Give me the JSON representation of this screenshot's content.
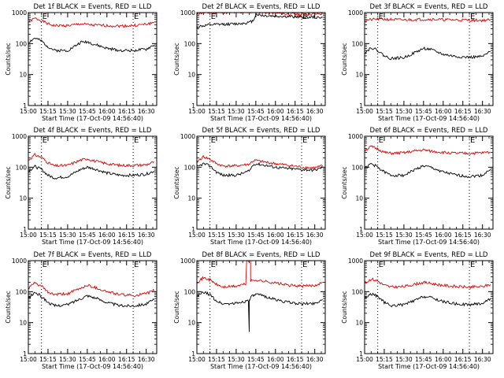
{
  "chart_data": [
    {
      "type": "line",
      "title": "Det 1f BLACK = Events, RED = LLD",
      "xlabel": "Start Time (17-Oct-09 14:56:40)",
      "ylabel": "Counts/sec",
      "xlim": [
        "15:00",
        "16:38"
      ],
      "ylim": [
        1,
        1000
      ],
      "yscale": "log",
      "x_ticks": [
        "15:00",
        "15:15",
        "15:30",
        "15:45",
        "16:00",
        "16:15",
        "16:30"
      ],
      "y_ticks": [
        "1",
        "10",
        "100",
        "1000"
      ],
      "markers": [
        {
          "time": "15:10",
          "label": "E"
        },
        {
          "time": "16:20",
          "label": "E"
        }
      ],
      "series": [
        {
          "color": "#e00000",
          "x": [
            "15:00",
            "15:05",
            "15:10",
            "15:15",
            "15:20",
            "15:30",
            "15:35",
            "15:40",
            "15:45",
            "15:50",
            "16:00",
            "16:10",
            "16:20",
            "16:30",
            "16:36"
          ],
          "values": [
            500,
            650,
            560,
            430,
            380,
            380,
            400,
            430,
            410,
            390,
            380,
            370,
            380,
            420,
            480
          ]
        },
        {
          "color": "#000000",
          "x": [
            "15:00",
            "15:05",
            "15:10",
            "15:15",
            "15:20",
            "15:30",
            "15:35",
            "15:40",
            "15:45",
            "15:50",
            "16:00",
            "16:10",
            "16:20",
            "16:30",
            "16:36"
          ],
          "values": [
            110,
            150,
            120,
            80,
            60,
            60,
            80,
            110,
            115,
            95,
            70,
            60,
            60,
            65,
            90
          ]
        }
      ]
    },
    {
      "type": "line",
      "title": "Det 2f BLACK = Events, RED = LLD",
      "xlabel": "Start Time (17-Oct-09 14:56:40)",
      "ylabel": "Counts/sec",
      "xlim": [
        "15:00",
        "16:38"
      ],
      "ylim": [
        1,
        1000
      ],
      "yscale": "log",
      "x_ticks": [
        "15:00",
        "15:15",
        "15:30",
        "15:45",
        "16:00",
        "16:15",
        "16:30"
      ],
      "y_ticks": [
        "1",
        "10",
        "100",
        "1000"
      ],
      "markers": [
        {
          "time": "15:10",
          "label": "E"
        },
        {
          "time": "16:20",
          "label": "E"
        }
      ],
      "series": [
        {
          "color": "#e00000",
          "x": [
            "15:00",
            "15:10",
            "15:20",
            "15:30",
            "15:40",
            "15:45",
            "15:50",
            "16:00",
            "16:10",
            "16:20",
            "16:30",
            "16:36"
          ],
          "values": [
            950,
            1000,
            1000,
            1000,
            1050,
            1150,
            1000,
            960,
            900,
            880,
            900,
            920
          ]
        },
        {
          "color": "#000000",
          "x": [
            "15:00",
            "15:10",
            "15:20",
            "15:30",
            "15:40",
            "15:43",
            "15:45",
            "15:50",
            "16:00",
            "16:10",
            "16:20",
            "16:30",
            "16:36"
          ],
          "values": [
            350,
            400,
            420,
            430,
            480,
            550,
            900,
            800,
            770,
            740,
            720,
            700,
            700
          ]
        }
      ]
    },
    {
      "type": "line",
      "title": "Det 3f BLACK = Events, RED = LLD",
      "xlabel": "Start Time (17-Oct-09 14:56:40)",
      "ylabel": "Counts/sec",
      "xlim": [
        "15:00",
        "16:38"
      ],
      "ylim": [
        1,
        1000
      ],
      "yscale": "log",
      "x_ticks": [
        "15:00",
        "15:15",
        "15:30",
        "15:45",
        "16:00",
        "16:15",
        "16:30"
      ],
      "y_ticks": [
        "1",
        "10",
        "100",
        "1000"
      ],
      "markers": [
        {
          "time": "15:10",
          "label": "E"
        },
        {
          "time": "16:20",
          "label": "E"
        }
      ],
      "series": [
        {
          "color": "#e00000",
          "x": [
            "15:00",
            "15:10",
            "15:20",
            "15:30",
            "15:40",
            "15:50",
            "16:00",
            "16:10",
            "16:20",
            "16:30",
            "16:36"
          ],
          "values": [
            560,
            620,
            600,
            580,
            600,
            610,
            590,
            580,
            570,
            560,
            580
          ]
        },
        {
          "color": "#000000",
          "x": [
            "15:00",
            "15:05",
            "15:10",
            "15:15",
            "15:20",
            "15:30",
            "15:40",
            "15:45",
            "15:50",
            "16:00",
            "16:10",
            "16:20",
            "16:30",
            "16:36"
          ],
          "values": [
            50,
            75,
            60,
            40,
            33,
            35,
            55,
            70,
            65,
            45,
            38,
            36,
            38,
            55
          ]
        }
      ]
    },
    {
      "type": "line",
      "title": "Det 4f BLACK = Events, RED = LLD",
      "xlabel": "Start Time (17-Oct-09 14:56:40)",
      "ylabel": "Counts/sec",
      "xlim": [
        "15:00",
        "16:38"
      ],
      "ylim": [
        1,
        1000
      ],
      "yscale": "log",
      "x_ticks": [
        "15:00",
        "15:15",
        "15:30",
        "15:45",
        "16:00",
        "16:15",
        "16:30"
      ],
      "y_ticks": [
        "1",
        "10",
        "100",
        "1000"
      ],
      "markers": [
        {
          "time": "15:10",
          "label": "E"
        },
        {
          "time": "16:20",
          "label": "E"
        }
      ],
      "series": [
        {
          "color": "#e00000",
          "x": [
            "15:00",
            "15:05",
            "15:10",
            "15:15",
            "15:20",
            "15:30",
            "15:40",
            "15:45",
            "15:50",
            "16:00",
            "16:10",
            "16:20",
            "16:30",
            "16:36"
          ],
          "values": [
            170,
            250,
            210,
            140,
            110,
            115,
            170,
            190,
            160,
            130,
            115,
            115,
            120,
            150
          ]
        },
        {
          "color": "#000000",
          "x": [
            "15:00",
            "15:05",
            "15:10",
            "15:15",
            "15:20",
            "15:30",
            "15:40",
            "15:45",
            "15:50",
            "16:00",
            "16:10",
            "16:20",
            "16:30",
            "16:36"
          ],
          "values": [
            75,
            105,
            85,
            55,
            45,
            50,
            85,
            100,
            90,
            65,
            55,
            55,
            60,
            75
          ]
        }
      ]
    },
    {
      "type": "line",
      "title": "Det 5f BLACK = Events, RED = LLD",
      "xlabel": "Start Time (17-Oct-09 14:56:40)",
      "ylabel": "Counts/sec",
      "xlim": [
        "15:00",
        "16:38"
      ],
      "ylim": [
        1,
        1000
      ],
      "yscale": "log",
      "x_ticks": [
        "15:00",
        "15:15",
        "15:30",
        "15:45",
        "16:00",
        "16:15",
        "16:30"
      ],
      "y_ticks": [
        "1",
        "10",
        "100",
        "1000"
      ],
      "markers": [
        {
          "time": "15:10",
          "label": "E"
        },
        {
          "time": "16:20",
          "label": "E"
        }
      ],
      "series": [
        {
          "color": "#e00000",
          "x": [
            "15:00",
            "15:05",
            "15:10",
            "15:15",
            "15:20",
            "15:30",
            "15:40",
            "15:43",
            "15:45",
            "15:50",
            "16:00",
            "16:10",
            "16:20",
            "16:30",
            "16:36"
          ],
          "values": [
            150,
            220,
            180,
            130,
            110,
            110,
            125,
            160,
            165,
            150,
            130,
            115,
            100,
            95,
            110
          ]
        },
        {
          "color": "#000000",
          "x": [
            "15:00",
            "15:05",
            "15:10",
            "15:15",
            "15:20",
            "15:30",
            "15:40",
            "15:43",
            "15:45",
            "15:50",
            "16:00",
            "16:10",
            "16:20",
            "16:30",
            "16:36"
          ],
          "values": [
            100,
            130,
            110,
            70,
            55,
            55,
            75,
            120,
            130,
            120,
            100,
            90,
            85,
            80,
            100
          ]
        }
      ]
    },
    {
      "type": "line",
      "title": "Det 6f BLACK = Events, RED = LLD",
      "xlabel": "Start Time (17-Oct-09 14:56:40)",
      "ylabel": "Counts/sec",
      "xlim": [
        "15:00",
        "16:38"
      ],
      "ylim": [
        1,
        1000
      ],
      "yscale": "log",
      "x_ticks": [
        "15:00",
        "15:15",
        "15:30",
        "15:45",
        "16:00",
        "16:15",
        "16:30"
      ],
      "y_ticks": [
        "1",
        "10",
        "100",
        "1000"
      ],
      "markers": [
        {
          "time": "15:10",
          "label": "E"
        },
        {
          "time": "16:20",
          "label": "E"
        }
      ],
      "series": [
        {
          "color": "#e00000",
          "x": [
            "15:00",
            "15:05",
            "15:10",
            "15:15",
            "15:20",
            "15:30",
            "15:40",
            "15:45",
            "15:50",
            "16:00",
            "16:10",
            "16:20",
            "16:30",
            "16:36"
          ],
          "values": [
            350,
            460,
            390,
            300,
            280,
            290,
            340,
            360,
            330,
            300,
            280,
            280,
            290,
            310
          ]
        },
        {
          "color": "#000000",
          "x": [
            "15:00",
            "15:05",
            "15:10",
            "15:15",
            "15:20",
            "15:30",
            "15:40",
            "15:45",
            "15:50",
            "16:00",
            "16:10",
            "16:20",
            "16:30",
            "16:36"
          ],
          "values": [
            90,
            130,
            100,
            70,
            55,
            55,
            90,
            110,
            100,
            70,
            55,
            50,
            55,
            85
          ]
        }
      ]
    },
    {
      "type": "line",
      "title": "Det 7f BLACK = Events, RED = LLD",
      "xlabel": "Start Time (17-Oct-09 14:56:40)",
      "ylabel": "Counts/sec",
      "xlim": [
        "15:00",
        "16:38"
      ],
      "ylim": [
        1,
        1000
      ],
      "yscale": "log",
      "x_ticks": [
        "15:00",
        "15:15",
        "15:30",
        "15:45",
        "16:00",
        "16:15",
        "16:30"
      ],
      "y_ticks": [
        "1",
        "10",
        "100",
        "1000"
      ],
      "markers": [
        {
          "time": "15:10",
          "label": "E"
        },
        {
          "time": "16:20",
          "label": "E"
        }
      ],
      "series": [
        {
          "color": "#e00000",
          "x": [
            "15:00",
            "15:05",
            "15:10",
            "15:15",
            "15:20",
            "15:30",
            "15:40",
            "15:45",
            "15:50",
            "16:00",
            "16:10",
            "16:20",
            "16:30",
            "16:36"
          ],
          "values": [
            130,
            190,
            150,
            95,
            80,
            85,
            130,
            160,
            140,
            100,
            80,
            75,
            85,
            110
          ]
        },
        {
          "color": "#000000",
          "x": [
            "15:00",
            "15:05",
            "15:10",
            "15:15",
            "15:20",
            "15:30",
            "15:40",
            "15:45",
            "15:50",
            "16:00",
            "16:10",
            "16:20",
            "16:30",
            "16:36"
          ],
          "values": [
            60,
            95,
            70,
            45,
            35,
            38,
            60,
            75,
            65,
            45,
            35,
            35,
            40,
            55
          ]
        }
      ]
    },
    {
      "type": "line",
      "title": "Det 8f BLACK = Events, RED = LLD",
      "xlabel": "Start Time (17-Oct-09 14:56:40)",
      "ylabel": "Counts/sec",
      "xlim": [
        "15:00",
        "16:38"
      ],
      "ylim": [
        1,
        1000
      ],
      "yscale": "log",
      "x_ticks": [
        "15:00",
        "15:15",
        "15:30",
        "15:45",
        "16:00",
        "16:15",
        "16:30"
      ],
      "y_ticks": [
        "1",
        "10",
        "100",
        "1000"
      ],
      "markers": [
        {
          "time": "15:10",
          "label": "E"
        },
        {
          "time": "16:20",
          "label": "E"
        }
      ],
      "series": [
        {
          "color": "#e00000",
          "x": [
            "15:00",
            "15:05",
            "15:10",
            "15:15",
            "15:20",
            "15:30",
            "15:38",
            "15:38",
            "15:38",
            "15:41",
            "15:41",
            "15:41",
            "15:45",
            "15:50",
            "16:00",
            "16:10",
            "16:20",
            "16:30",
            "16:36"
          ],
          "values": [
            200,
            280,
            240,
            170,
            140,
            150,
            180,
            1000,
            1000,
            1000,
            1000,
            220,
            240,
            220,
            190,
            160,
            150,
            160,
            200
          ]
        },
        {
          "color": "#000000",
          "x": [
            "15:00",
            "15:05",
            "15:10",
            "15:15",
            "15:20",
            "15:30",
            "15:38",
            "15:40",
            "15:40",
            "15:40",
            "15:42",
            "15:45",
            "15:50",
            "16:00",
            "16:10",
            "16:20",
            "16:30",
            "16:36"
          ],
          "values": [
            70,
            95,
            80,
            50,
            40,
            42,
            50,
            55,
            5,
            55,
            70,
            80,
            75,
            55,
            45,
            40,
            42,
            55
          ]
        }
      ]
    },
    {
      "type": "line",
      "title": "Det 9f BLACK = Events, RED = LLD",
      "xlabel": "Start Time (17-Oct-09 14:56:40)",
      "ylabel": "Counts/sec",
      "xlim": [
        "15:00",
        "16:38"
      ],
      "ylim": [
        1,
        1000
      ],
      "yscale": "log",
      "x_ticks": [
        "15:00",
        "15:15",
        "15:30",
        "15:45",
        "16:00",
        "16:15",
        "16:30"
      ],
      "y_ticks": [
        "1",
        "10",
        "100",
        "1000"
      ],
      "markers": [
        {
          "time": "15:10",
          "label": "E"
        },
        {
          "time": "16:20",
          "label": "E"
        }
      ],
      "series": [
        {
          "color": "#e00000",
          "x": [
            "15:00",
            "15:05",
            "15:10",
            "15:15",
            "15:20",
            "15:30",
            "15:40",
            "15:45",
            "15:50",
            "16:00",
            "16:10",
            "16:20",
            "16:30",
            "16:36"
          ],
          "values": [
            180,
            260,
            220,
            160,
            140,
            145,
            180,
            200,
            185,
            160,
            145,
            140,
            145,
            170
          ]
        },
        {
          "color": "#000000",
          "x": [
            "15:00",
            "15:05",
            "15:10",
            "15:15",
            "15:20",
            "15:30",
            "15:40",
            "15:45",
            "15:50",
            "16:00",
            "16:10",
            "16:20",
            "16:30",
            "16:36"
          ],
          "values": [
            60,
            85,
            70,
            45,
            35,
            38,
            55,
            70,
            65,
            48,
            40,
            38,
            42,
            60
          ]
        }
      ]
    }
  ]
}
